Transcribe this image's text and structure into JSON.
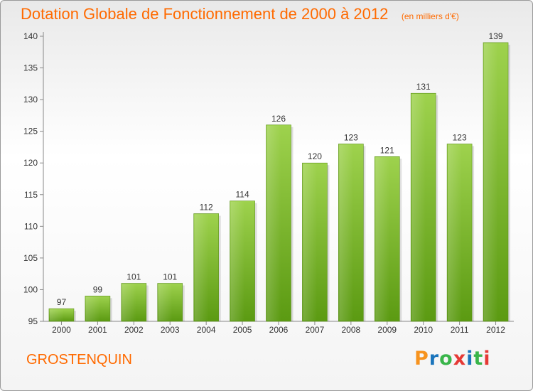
{
  "header": {
    "title": "Dotation Globale de Fonctionnement de 2000 à 2012",
    "subtitle": "(en milliers d'€)"
  },
  "footer": {
    "commune": "GROSTENQUIN",
    "logo_text": "Proxiti",
    "logo_colors": [
      "#f7931e",
      "#1b75bc",
      "#39b54a",
      "#e53935",
      "#1b75bc",
      "#39b54a",
      "#e53935"
    ]
  },
  "colors": {
    "accent": "#ff6a00",
    "bar_top": "#9ed24d",
    "bar_bottom": "#5b9a12"
  },
  "chart_data": {
    "type": "bar",
    "categories": [
      "2000",
      "2001",
      "2002",
      "2003",
      "2004",
      "2005",
      "2006",
      "2007",
      "2008",
      "2009",
      "2010",
      "2011",
      "2012"
    ],
    "values": [
      97,
      99,
      101,
      101,
      112,
      114,
      126,
      120,
      123,
      121,
      131,
      123,
      139
    ],
    "ylim": [
      95,
      140
    ],
    "yticks": [
      95,
      100,
      105,
      110,
      115,
      120,
      125,
      130,
      135,
      140
    ],
    "grid": false
  }
}
